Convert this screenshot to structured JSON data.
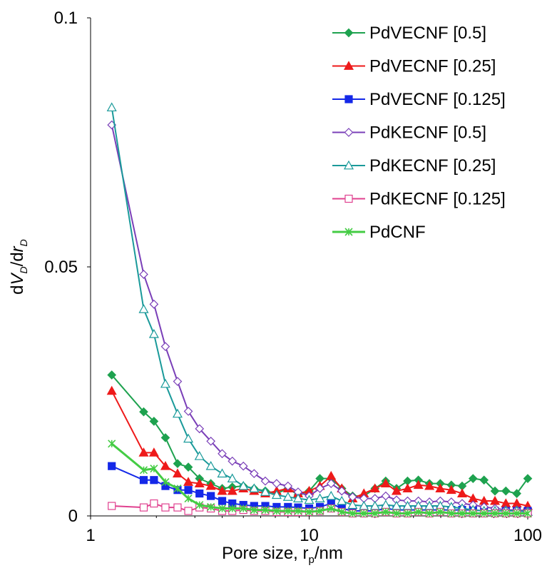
{
  "chart_data": {
    "type": "line",
    "xscale": "log",
    "xlim": [
      1,
      100
    ],
    "ylim": [
      0,
      0.1
    ],
    "xticks": [
      "1",
      "10",
      "100"
    ],
    "yticks": [
      "0",
      "0.05",
      "0.1"
    ],
    "xlabel": {
      "main": "Pore size, r",
      "sub": "p",
      "tail": "/nm"
    },
    "ylabel": {
      "d1": "d",
      "v": "V",
      "s1": "D",
      "d2": "/d",
      "r": "r",
      "s2": "D"
    },
    "grid": false,
    "legend_position": "top-right",
    "series": [
      {
        "name": "PdVECNF [0.5]",
        "color": "#1ea24f",
        "marker": "diamond-filled",
        "x": [
          1.25,
          1.75,
          1.95,
          2.2,
          2.5,
          2.8,
          3.15,
          3.55,
          4.0,
          4.45,
          5.0,
          5.6,
          6.3,
          7.1,
          8.0,
          8.9,
          10.0,
          11.2,
          12.6,
          14.1,
          15.8,
          17.8,
          20.0,
          22.4,
          25.1,
          28.2,
          31.6,
          35.5,
          39.8,
          44.7,
          50.1,
          56.2,
          63.1,
          70.8,
          79.4,
          89.1,
          100.0
        ],
        "y": [
          0.0283,
          0.0209,
          0.019,
          0.0157,
          0.0105,
          0.0098,
          0.0075,
          0.0065,
          0.0055,
          0.0058,
          0.006,
          0.0055,
          0.005,
          0.0045,
          0.0055,
          0.0042,
          0.005,
          0.0075,
          0.0075,
          0.0055,
          0.004,
          0.004,
          0.0055,
          0.007,
          0.0055,
          0.007,
          0.0072,
          0.0065,
          0.0065,
          0.0062,
          0.006,
          0.0075,
          0.0072,
          0.005,
          0.005,
          0.0045,
          0.0075
        ]
      },
      {
        "name": "PdVECNF [0.25]",
        "color": "#ee1a1a",
        "marker": "triangle-filled",
        "x": [
          1.25,
          1.75,
          1.95,
          2.2,
          2.5,
          2.8,
          3.15,
          3.55,
          4.0,
          4.45,
          5.0,
          5.6,
          6.3,
          7.1,
          8.0,
          8.9,
          10.0,
          11.2,
          12.6,
          14.1,
          15.8,
          17.8,
          20.0,
          22.4,
          25.1,
          28.2,
          31.6,
          35.5,
          39.8,
          44.7,
          50.1,
          56.2,
          63.1,
          70.8,
          79.4,
          89.1,
          100.0
        ],
        "y": [
          0.0251,
          0.0127,
          0.0127,
          0.01,
          0.0085,
          0.0068,
          0.0065,
          0.006,
          0.005,
          0.005,
          0.0055,
          0.005,
          0.0045,
          0.005,
          0.0055,
          0.0045,
          0.005,
          0.006,
          0.008,
          0.0055,
          0.0035,
          0.0045,
          0.0055,
          0.0065,
          0.005,
          0.0055,
          0.0062,
          0.006,
          0.0055,
          0.0052,
          0.0045,
          0.0035,
          0.003,
          0.003,
          0.0025,
          0.0025,
          0.002
        ]
      },
      {
        "name": "PdVECNF [0.125]",
        "color": "#1428e8",
        "marker": "square-filled",
        "x": [
          1.25,
          1.75,
          1.95,
          2.2,
          2.5,
          2.8,
          3.15,
          3.55,
          4.0,
          4.45,
          5.0,
          5.6,
          6.3,
          7.1,
          8.0,
          8.9,
          10.0,
          11.2,
          12.6,
          14.1,
          15.8,
          17.8,
          20.0,
          22.4,
          25.1,
          28.2,
          31.6,
          35.5,
          39.8,
          44.7,
          50.1,
          56.2,
          63.1,
          70.8,
          79.4,
          89.1,
          100.0
        ],
        "y": [
          0.01,
          0.0072,
          0.0072,
          0.006,
          0.0052,
          0.0052,
          0.0045,
          0.004,
          0.003,
          0.0025,
          0.0022,
          0.002,
          0.002,
          0.0018,
          0.0018,
          0.0017,
          0.0015,
          0.0018,
          0.0025,
          0.0015,
          0.001,
          0.001,
          0.001,
          0.0015,
          0.0012,
          0.0012,
          0.0012,
          0.0012,
          0.0012,
          0.0012,
          0.0012,
          0.0012,
          0.001,
          0.001,
          0.001,
          0.001,
          0.001
        ]
      },
      {
        "name": "PdKECNF [0.5]",
        "color": "#7a3fb8",
        "marker": "diamond-open",
        "x": [
          1.25,
          1.75,
          1.95,
          2.2,
          2.5,
          2.8,
          3.15,
          3.55,
          4.0,
          4.45,
          5.0,
          5.6,
          6.3,
          7.1,
          8.0,
          8.9,
          10.0,
          11.2,
          12.6,
          14.1,
          15.8,
          17.8,
          20.0,
          22.4,
          25.1,
          28.2,
          31.6,
          35.5,
          39.8,
          44.7,
          50.1,
          56.2,
          63.1,
          70.8,
          79.4,
          89.1,
          100.0
        ],
        "y": [
          0.0785,
          0.0485,
          0.0425,
          0.034,
          0.027,
          0.021,
          0.0175,
          0.015,
          0.0125,
          0.011,
          0.01,
          0.0085,
          0.007,
          0.0065,
          0.006,
          0.0048,
          0.004,
          0.0055,
          0.0065,
          0.005,
          0.0038,
          0.0035,
          0.0035,
          0.004,
          0.0032,
          0.003,
          0.003,
          0.0028,
          0.003,
          0.0028,
          0.0025,
          0.0022,
          0.0018,
          0.0015,
          0.0012,
          0.0012,
          0.001
        ]
      },
      {
        "name": "PdKECNF [0.25]",
        "color": "#1a9a9a",
        "marker": "triangle-open",
        "x": [
          1.25,
          1.75,
          1.95,
          2.2,
          2.5,
          2.8,
          3.15,
          3.55,
          4.0,
          4.45,
          5.0,
          5.6,
          6.3,
          7.1,
          8.0,
          8.9,
          10.0,
          11.2,
          12.6,
          14.1,
          15.8,
          17.8,
          20.0,
          22.4,
          25.1,
          28.2,
          31.6,
          35.5,
          39.8,
          44.7,
          50.1,
          56.2,
          63.1,
          70.8,
          79.4,
          89.1,
          100.0
        ],
        "y": [
          0.082,
          0.0415,
          0.0365,
          0.0265,
          0.0205,
          0.0155,
          0.012,
          0.01,
          0.0085,
          0.0075,
          0.006,
          0.0055,
          0.0048,
          0.0042,
          0.0038,
          0.0035,
          0.0032,
          0.0035,
          0.004,
          0.003,
          0.0022,
          0.002,
          0.002,
          0.0022,
          0.002,
          0.002,
          0.002,
          0.002,
          0.002,
          0.0018,
          0.0015,
          0.0012,
          0.001,
          0.001,
          0.001,
          0.001,
          0.0008
        ]
      },
      {
        "name": "PdKECNF [0.125]",
        "color": "#e0408f",
        "marker": "square-open",
        "x": [
          1.25,
          1.75,
          1.95,
          2.2,
          2.5,
          2.8,
          3.15,
          3.55,
          4.0,
          4.45,
          5.0,
          5.6,
          6.3,
          7.1,
          8.0,
          8.9,
          10.0,
          11.2,
          12.6,
          14.1,
          15.8,
          17.8,
          20.0,
          22.4,
          25.1,
          28.2,
          31.6,
          35.5,
          39.8,
          44.7,
          50.1,
          56.2,
          63.1,
          70.8,
          79.4,
          89.1,
          100.0
        ],
        "y": [
          0.002,
          0.0017,
          0.0025,
          0.0017,
          0.0017,
          0.001,
          0.0017,
          0.0015,
          0.001,
          0.001,
          0.0012,
          0.001,
          0.001,
          0.0008,
          0.0008,
          0.0008,
          0.0008,
          0.001,
          0.0015,
          0.0008,
          0.0005,
          0.0005,
          0.0005,
          0.0008,
          0.0005,
          0.0005,
          0.0008,
          0.0005,
          0.0008,
          0.0005,
          0.0005,
          0.0005,
          0.0005,
          0.0005,
          0.0005,
          0.0005,
          0.0005
        ]
      },
      {
        "name": "PdCNF",
        "color": "#44cc44",
        "marker": "star",
        "x": [
          1.25,
          1.75,
          1.95,
          2.2,
          2.5,
          2.8,
          3.15,
          3.55,
          4.0,
          4.45,
          5.0,
          5.6,
          6.3,
          7.1,
          8.0,
          8.9,
          10.0,
          11.2,
          12.6,
          14.1,
          15.8,
          17.8,
          20.0,
          22.4,
          25.1,
          28.2,
          31.6,
          35.5,
          39.8,
          44.7,
          50.1,
          56.2,
          63.1,
          70.8,
          79.4,
          89.1,
          100.0
        ],
        "y": [
          0.0145,
          0.0092,
          0.0095,
          0.0068,
          0.0055,
          0.0035,
          0.0022,
          0.0018,
          0.0015,
          0.0015,
          0.0015,
          0.0012,
          0.0012,
          0.001,
          0.001,
          0.001,
          0.0008,
          0.001,
          0.0015,
          0.0008,
          0.0005,
          0.0005,
          0.0005,
          0.0008,
          0.0005,
          0.0005,
          0.0008,
          0.0005,
          0.0008,
          0.0005,
          0.0005,
          0.0005,
          0.0005,
          0.0005,
          0.0005,
          0.0005,
          0.0005
        ]
      }
    ]
  }
}
